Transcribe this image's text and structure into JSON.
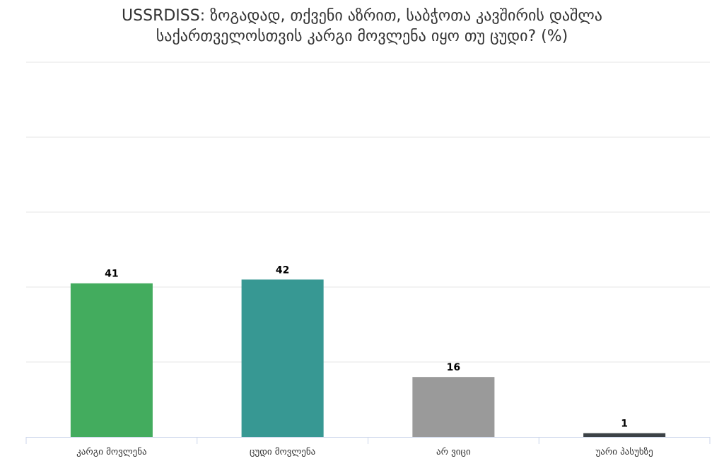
{
  "chart_data": {
    "type": "bar",
    "title_lines": [
      "USSRDISS: ზოგადად, თქვენი აზრით, საბჭოთა კავშირის დაშლა",
      "საქართველოსთვის კარგი მოვლენა იყო თუ ცუდი? (%)"
    ],
    "categories": [
      "კარგი მოვლენა",
      "ცუდი მოვლენა",
      "არ ვიცი",
      "უარი პასუხზე"
    ],
    "values": [
      41,
      42,
      16,
      1
    ],
    "colors": [
      "#43ac5e",
      "#379893",
      "#9a9a9a",
      "#3c4246"
    ],
    "ylim": [
      0,
      100
    ],
    "grid": true,
    "xlabel": "",
    "ylabel": ""
  }
}
